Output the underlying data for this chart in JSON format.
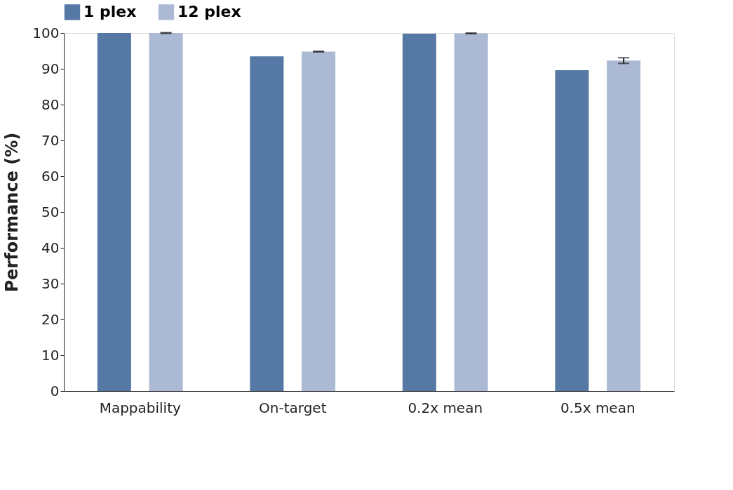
{
  "chart_data": {
    "type": "bar",
    "ylabel": "Performance (%)",
    "categories": [
      "Mappability",
      "On-target",
      "0.2x mean",
      "0.5x mean"
    ],
    "series": [
      {
        "name": "1 plex",
        "color": "#5578a5",
        "values": [
          100,
          93.5,
          99.8,
          89.6
        ]
      },
      {
        "name": "12 plex",
        "color": "#abb9d4",
        "values": [
          100,
          94.8,
          99.9,
          92.3
        ],
        "errors": [
          0.1,
          0.1,
          0.1,
          0.8
        ]
      }
    ],
    "ylim": [
      0,
      100
    ],
    "yticks": [
      0,
      10,
      20,
      30,
      40,
      50,
      60,
      70,
      80,
      90,
      100
    ],
    "grid": false,
    "legend": "top"
  }
}
